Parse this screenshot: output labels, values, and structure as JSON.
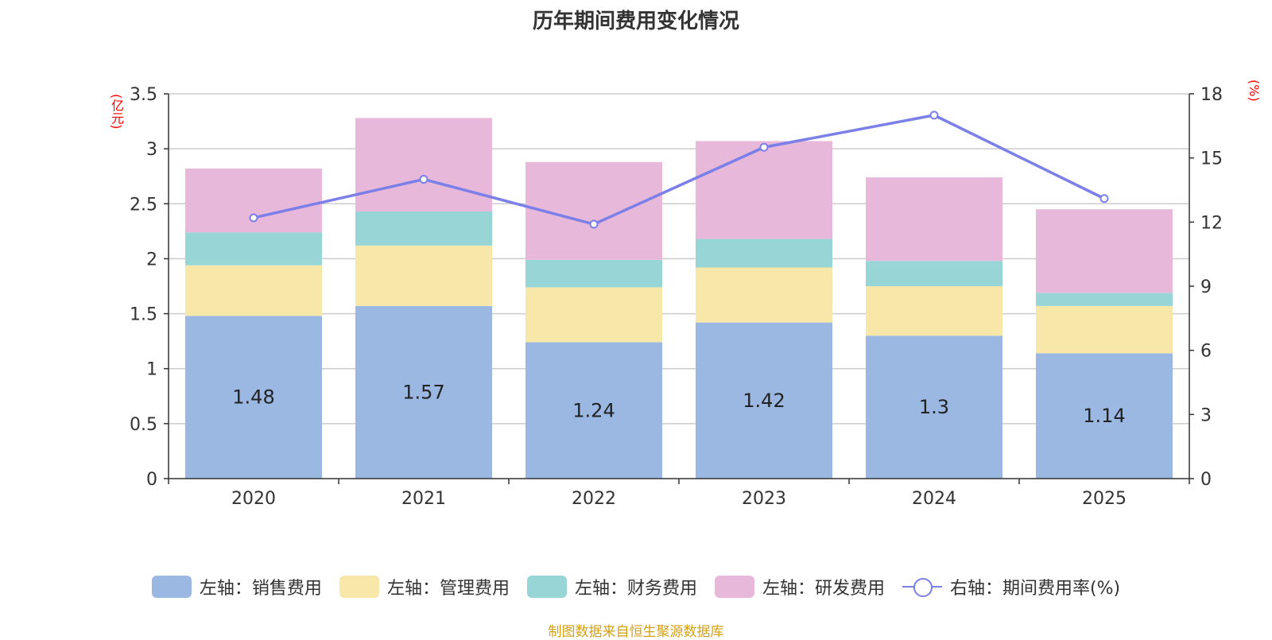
{
  "chart_data": {
    "type": "bar",
    "title": "历年期间费用变化情况",
    "categories": [
      "2020",
      "2021",
      "2022",
      "2023",
      "2024",
      "2025"
    ],
    "left_axis": {
      "unit": "(亿元)",
      "ylim": [
        0,
        3.5
      ],
      "ticks": [
        "0",
        "0.5",
        "1",
        "1.5",
        "2",
        "2.5",
        "3",
        "3.5"
      ]
    },
    "right_axis": {
      "unit": "(%)",
      "ylim": [
        0,
        18
      ],
      "ticks": [
        "0",
        "3",
        "6",
        "9",
        "12",
        "15",
        "18"
      ]
    },
    "series": [
      {
        "name": "左轴：销售费用",
        "type": "bar",
        "color": "#9bb8e3",
        "values": [
          1.48,
          1.57,
          1.24,
          1.42,
          1.3,
          1.14
        ],
        "labels": [
          "1.48",
          "1.57",
          "1.24",
          "1.42",
          "1.3",
          "1.14"
        ]
      },
      {
        "name": "左轴：管理费用",
        "type": "bar",
        "color": "#f7e7a8",
        "values": [
          0.46,
          0.55,
          0.5,
          0.5,
          0.45,
          0.43
        ]
      },
      {
        "name": "左轴：财务费用",
        "type": "bar",
        "color": "#98d5d6",
        "values": [
          0.3,
          0.31,
          0.25,
          0.26,
          0.23,
          0.12
        ]
      },
      {
        "name": "左轴：研发费用",
        "type": "bar",
        "color": "#e8b8da",
        "values": [
          0.58,
          0.85,
          0.89,
          0.89,
          0.76,
          0.76
        ]
      },
      {
        "name": "右轴：期间费用率(%)",
        "type": "line",
        "color": "#7b7fe8",
        "values": [
          12.2,
          14.0,
          11.9,
          15.5,
          17.0,
          13.1
        ]
      }
    ]
  },
  "source": "制图数据来自恒生聚源数据库"
}
